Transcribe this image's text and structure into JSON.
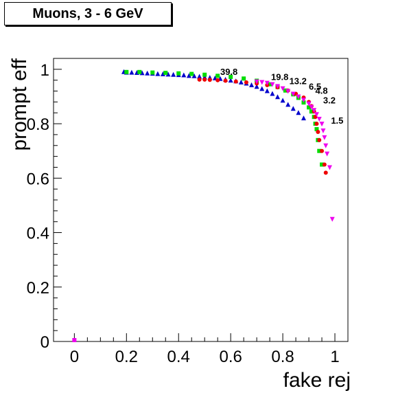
{
  "chart_data": {
    "type": "scatter",
    "title": "Muons, 3 - 6 GeV",
    "xlabel": "fake rej",
    "ylabel": "prompt eff",
    "xlim": [
      -0.08,
      1.05
    ],
    "ylim": [
      0,
      1.04
    ],
    "xticks": [
      0,
      0.2,
      0.4,
      0.6,
      0.8,
      1
    ],
    "xtick_labels": [
      "0",
      "0.2",
      "0.4",
      "0.6",
      "0.8",
      "1"
    ],
    "yticks": [
      0,
      0.2,
      0.4,
      0.6,
      0.8,
      1
    ],
    "ytick_labels": [
      "0",
      "0.2",
      "0.4",
      "0.6",
      "0.8",
      "1"
    ],
    "grid": false,
    "series": [
      {
        "color": "#0000cc",
        "marker": "triangle-up",
        "points": [
          [
            0.19,
            0.99
          ],
          [
            0.2,
            0.988
          ],
          [
            0.22,
            0.988
          ],
          [
            0.24,
            0.987
          ],
          [
            0.26,
            0.986
          ],
          [
            0.28,
            0.985
          ],
          [
            0.3,
            0.984
          ],
          [
            0.32,
            0.983
          ],
          [
            0.34,
            0.982
          ],
          [
            0.36,
            0.981
          ],
          [
            0.38,
            0.98
          ],
          [
            0.4,
            0.979
          ],
          [
            0.42,
            0.978
          ],
          [
            0.44,
            0.976
          ],
          [
            0.46,
            0.975
          ],
          [
            0.48,
            0.973
          ],
          [
            0.5,
            0.971
          ],
          [
            0.52,
            0.969
          ],
          [
            0.54,
            0.967
          ],
          [
            0.56,
            0.965
          ],
          [
            0.58,
            0.962
          ],
          [
            0.6,
            0.959
          ],
          [
            0.62,
            0.956
          ],
          [
            0.64,
            0.952
          ],
          [
            0.66,
            0.948
          ],
          [
            0.68,
            0.942
          ],
          [
            0.7,
            0.936
          ],
          [
            0.72,
            0.928
          ],
          [
            0.74,
            0.92
          ],
          [
            0.76,
            0.91
          ],
          [
            0.78,
            0.898
          ],
          [
            0.8,
            0.885
          ],
          [
            0.82,
            0.87
          ],
          [
            0.84,
            0.855
          ],
          [
            0.86,
            0.84
          ],
          [
            0.88,
            0.82
          ]
        ]
      },
      {
        "color": "#00dd00",
        "marker": "square",
        "points": [
          [
            0.2,
            0.99
          ],
          [
            0.25,
            0.99
          ],
          [
            0.3,
            0.988
          ],
          [
            0.35,
            0.987
          ],
          [
            0.4,
            0.985
          ],
          [
            0.45,
            0.983
          ],
          [
            0.5,
            0.98
          ],
          [
            0.55,
            0.976
          ],
          [
            0.6,
            0.972
          ],
          [
            0.65,
            0.966
          ],
          [
            0.7,
            0.958
          ],
          [
            0.75,
            0.945
          ],
          [
            0.78,
            0.935
          ],
          [
            0.81,
            0.922
          ],
          [
            0.84,
            0.908
          ],
          [
            0.86,
            0.895
          ],
          [
            0.88,
            0.878
          ],
          [
            0.9,
            0.86
          ],
          [
            0.91,
            0.845
          ],
          [
            0.92,
            0.825
          ],
          [
            0.925,
            0.8
          ],
          [
            0.93,
            0.78
          ],
          [
            0.935,
            0.74
          ],
          [
            0.94,
            0.7
          ],
          [
            0.95,
            0.65
          ]
        ]
      },
      {
        "color": "#ee0000",
        "marker": "circle",
        "points": [
          [
            0.48,
            0.962
          ],
          [
            0.5,
            0.962
          ],
          [
            0.52,
            0.961
          ],
          [
            0.55,
            0.96
          ],
          [
            0.58,
            0.958
          ],
          [
            0.62,
            0.955
          ],
          [
            0.66,
            0.952
          ],
          [
            0.7,
            0.948
          ],
          [
            0.74,
            0.942
          ],
          [
            0.78,
            0.934
          ],
          [
            0.82,
            0.922
          ],
          [
            0.85,
            0.91
          ],
          [
            0.88,
            0.896
          ],
          [
            0.9,
            0.88
          ],
          [
            0.91,
            0.865
          ],
          [
            0.92,
            0.845
          ],
          [
            0.925,
            0.825
          ],
          [
            0.93,
            0.8
          ],
          [
            0.935,
            0.77
          ],
          [
            0.94,
            0.74
          ],
          [
            0.95,
            0.7
          ],
          [
            0.96,
            0.65
          ],
          [
            0.965,
            0.62
          ]
        ]
      },
      {
        "color": "#ee00ee",
        "marker": "triangle-down",
        "points": [
          [
            0.7,
            0.955
          ],
          [
            0.72,
            0.953
          ],
          [
            0.74,
            0.95
          ],
          [
            0.76,
            0.945
          ],
          [
            0.78,
            0.938
          ],
          [
            0.8,
            0.93
          ],
          [
            0.82,
            0.92
          ],
          [
            0.84,
            0.91
          ],
          [
            0.86,
            0.9
          ],
          [
            0.88,
            0.888
          ],
          [
            0.9,
            0.874
          ],
          [
            0.91,
            0.862
          ],
          [
            0.92,
            0.85
          ],
          [
            0.93,
            0.835
          ],
          [
            0.94,
            0.818
          ],
          [
            0.95,
            0.8
          ],
          [
            0.955,
            0.775
          ],
          [
            0.96,
            0.75
          ],
          [
            0.965,
            0.72
          ],
          [
            0.97,
            0.69
          ],
          [
            0.98,
            0.64
          ],
          [
            0.99,
            0.45
          ]
        ]
      },
      {
        "color": "#ee00ee",
        "marker": "square",
        "points": [
          [
            0,
            0.005
          ]
        ]
      }
    ],
    "annotations": [
      {
        "text": "39.8",
        "x": 0.56,
        "y": 0.98
      },
      {
        "text": "19.8",
        "x": 0.755,
        "y": 0.96
      },
      {
        "text": "13.2",
        "x": 0.825,
        "y": 0.945
      },
      {
        "text": "6.5",
        "x": 0.9,
        "y": 0.925
      },
      {
        "text": "4.8",
        "x": 0.925,
        "y": 0.91
      },
      {
        "text": "3.2",
        "x": 0.955,
        "y": 0.875
      },
      {
        "text": "1.5",
        "x": 0.985,
        "y": 0.8
      }
    ]
  }
}
